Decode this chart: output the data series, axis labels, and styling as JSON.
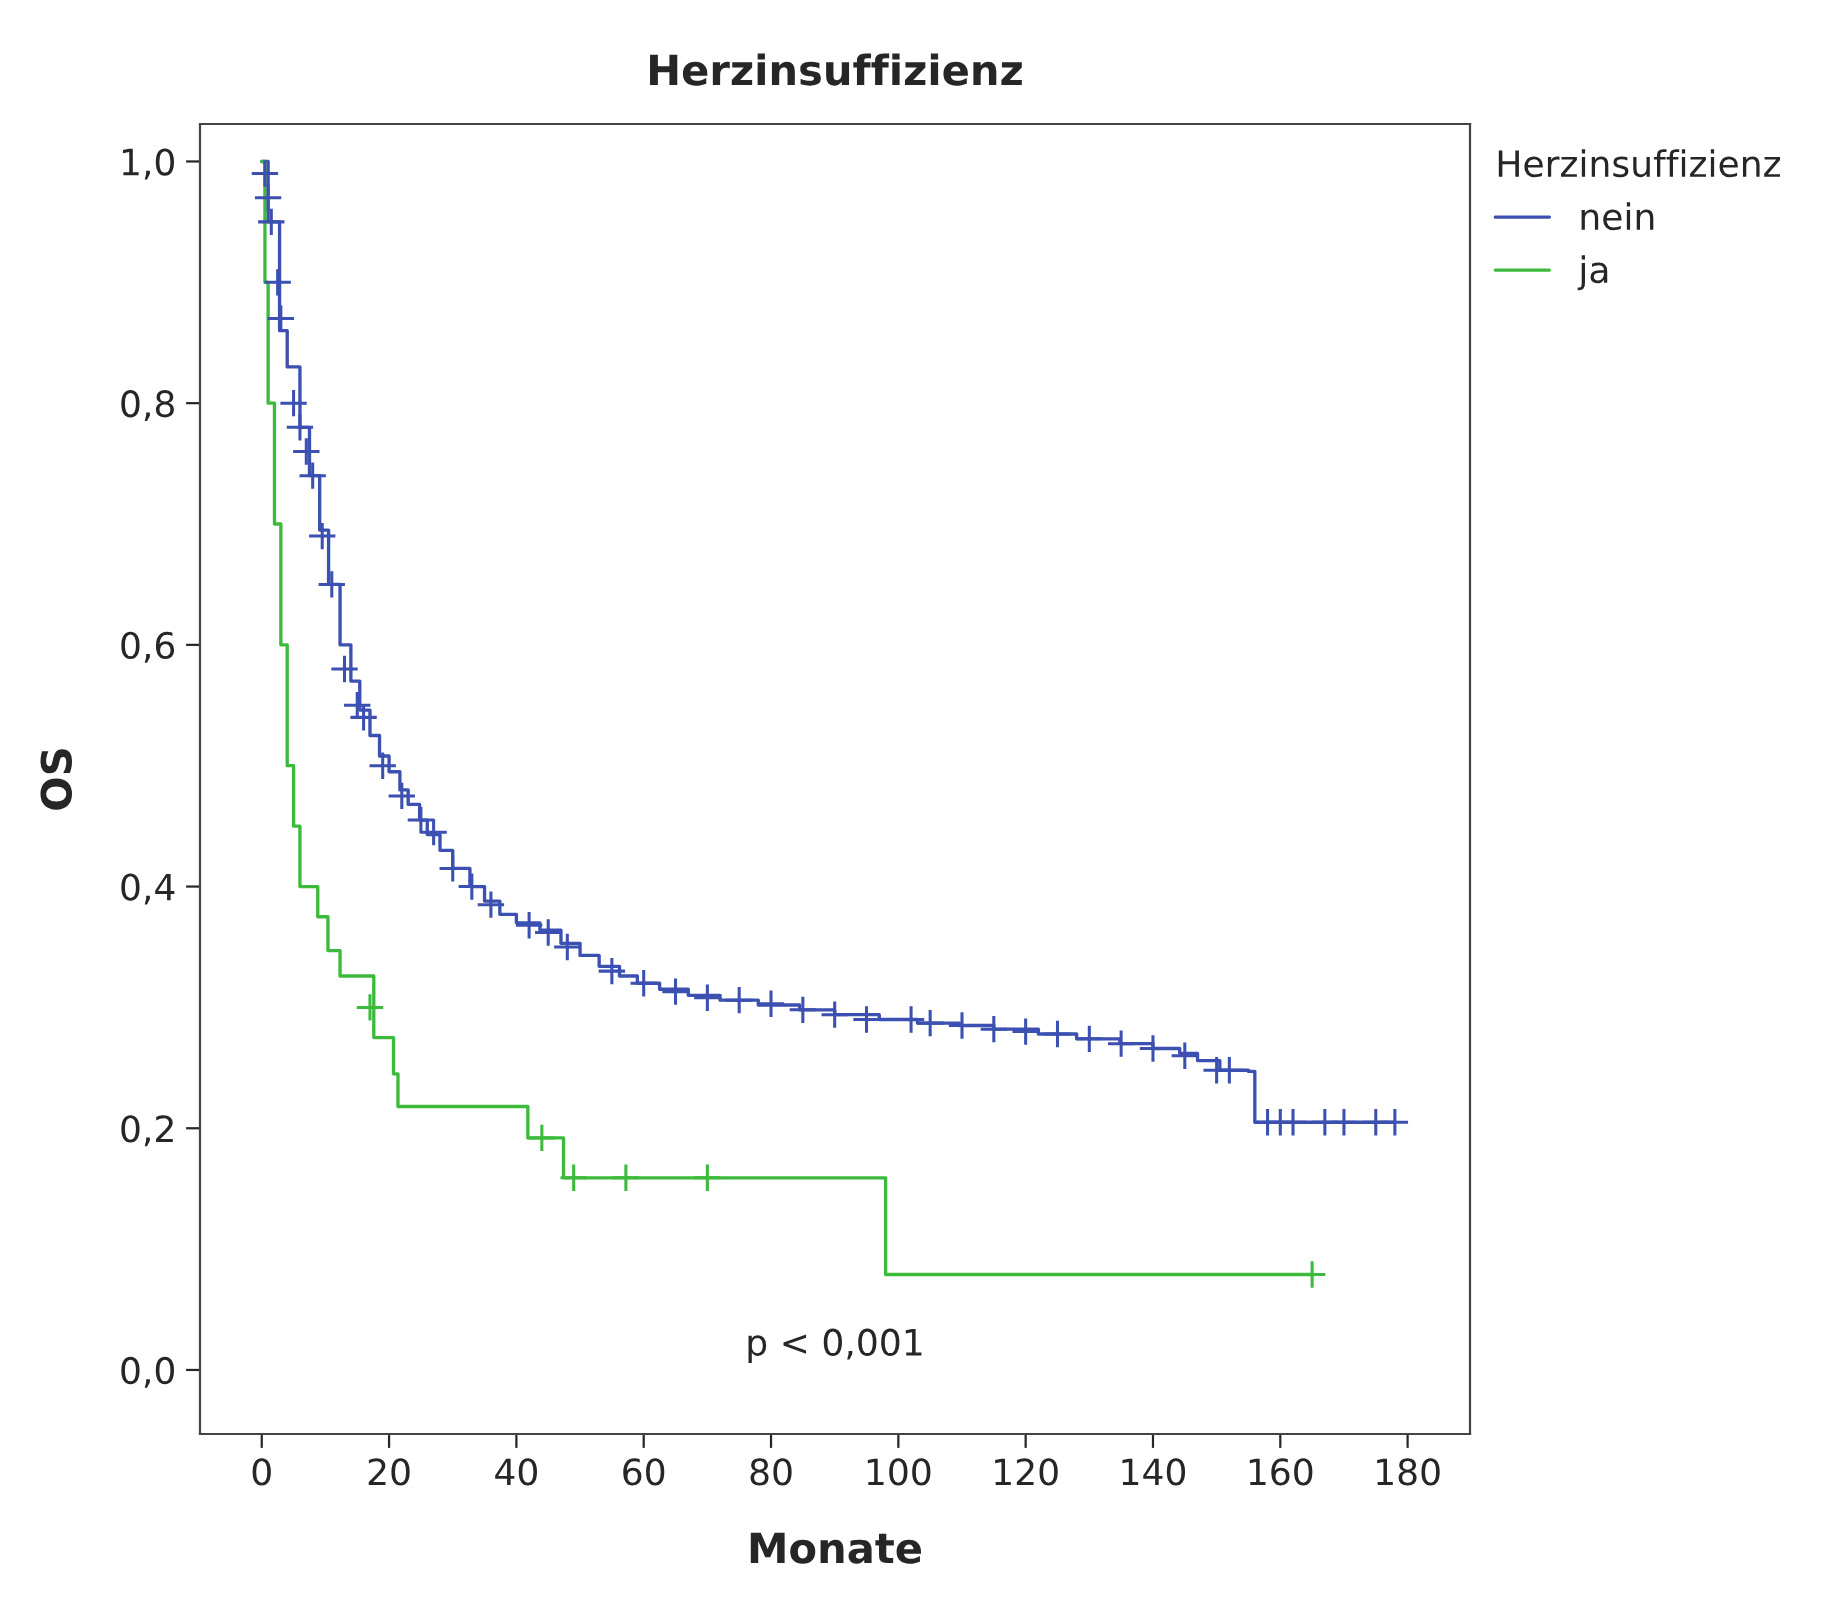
{
  "chart_data": {
    "type": "step",
    "title": "Herzinsuffizienz",
    "xlabel": "Monate",
    "ylabel": "OS",
    "legend_title": "Herzinsuffizienz",
    "legend": "top right",
    "grid": false,
    "xlim": [
      -9.7,
      189.8
    ],
    "ylim": [
      -0.053,
      1.031
    ],
    "xticks": [
      0,
      20,
      40,
      60,
      80,
      100,
      120,
      140,
      160,
      180
    ],
    "yticks": [
      {
        "value": 0.0,
        "label": "0,0"
      },
      {
        "value": 0.2,
        "label": "0,2"
      },
      {
        "value": 0.4,
        "label": "0,4"
      },
      {
        "value": 0.6,
        "label": "0,6"
      },
      {
        "value": 0.8,
        "label": "0,8"
      },
      {
        "value": 1.0,
        "label": "1,0"
      }
    ],
    "annotations": [
      "p < 0,001"
    ],
    "series": [
      {
        "name": "nein",
        "color": "#3b50b0",
        "x": [
          0,
          1,
          2.8,
          4,
          6,
          7.5,
          9.1,
          10.5,
          12.3,
          14,
          15.4,
          17,
          18.5,
          20,
          21.7,
          23,
          24.8,
          26,
          28,
          30,
          32.7,
          35,
          37.4,
          40,
          43.7,
          47,
          50,
          53,
          56.2,
          59,
          62.5,
          67,
          72,
          78,
          84.5,
          90,
          97,
          103,
          109.6,
          115,
          122,
          128,
          134.8,
          140,
          144.2,
          147,
          150.5,
          155,
          156,
          178
        ],
        "values": [
          1.0,
          0.95,
          0.86,
          0.83,
          0.78,
          0.74,
          0.695,
          0.65,
          0.6,
          0.57,
          0.546,
          0.525,
          0.508,
          0.495,
          0.48,
          0.468,
          0.455,
          0.443,
          0.43,
          0.415,
          0.4,
          0.388,
          0.377,
          0.37,
          0.364,
          0.353,
          0.343,
          0.334,
          0.326,
          0.32,
          0.315,
          0.31,
          0.306,
          0.302,
          0.298,
          0.294,
          0.29,
          0.287,
          0.285,
          0.282,
          0.278,
          0.274,
          0.27,
          0.266,
          0.262,
          0.256,
          0.248,
          0.247,
          0.205,
          0.205
        ]
      },
      {
        "color": "#3b50b0",
        "type": "scatter",
        "marker": "cross",
        "x": [
          0.5,
          1,
          1.5,
          2.5,
          3,
          5,
          6,
          7,
          8,
          9.5,
          11,
          13,
          15,
          16,
          19,
          22,
          25,
          27,
          30,
          33,
          36,
          42,
          45,
          48,
          55,
          60,
          65,
          70,
          75,
          80,
          85,
          90,
          95,
          102,
          105,
          110,
          115,
          120,
          125,
          130,
          135,
          140,
          145,
          150,
          152,
          158,
          160,
          162,
          167,
          170,
          175,
          178
        ],
        "values": [
          0.99,
          0.97,
          0.95,
          0.9,
          0.87,
          0.8,
          0.78,
          0.76,
          0.74,
          0.69,
          0.65,
          0.58,
          0.55,
          0.54,
          0.5,
          0.475,
          0.455,
          0.445,
          0.415,
          0.4,
          0.385,
          0.368,
          0.362,
          0.35,
          0.33,
          0.32,
          0.313,
          0.308,
          0.306,
          0.303,
          0.298,
          0.294,
          0.29,
          0.29,
          0.287,
          0.285,
          0.282,
          0.28,
          0.278,
          0.274,
          0.27,
          0.266,
          0.26,
          0.248,
          0.248,
          0.205,
          0.205,
          0.205,
          0.205,
          0.205,
          0.205,
          0.205
        ]
      },
      {
        "name": "ja",
        "color": "#3cba3c",
        "x": [
          0,
          0.5,
          1,
          2,
          3,
          4,
          5,
          6,
          8.8,
          10.4,
          12.3,
          17.6,
          20.7,
          21.4,
          41.8,
          47.4,
          98,
          165
        ],
        "values": [
          1.0,
          0.9,
          0.8,
          0.7,
          0.6,
          0.5,
          0.45,
          0.4,
          0.375,
          0.347,
          0.326,
          0.275,
          0.245,
          0.218,
          0.192,
          0.159,
          0.079,
          0.079
        ]
      },
      {
        "color": "#3cba3c",
        "type": "scatter",
        "marker": "cross",
        "x": [
          17,
          44,
          49,
          57.2,
          70,
          165
        ],
        "values": [
          0.3,
          0.192,
          0.159,
          0.159,
          0.159,
          0.079
        ]
      }
    ]
  }
}
